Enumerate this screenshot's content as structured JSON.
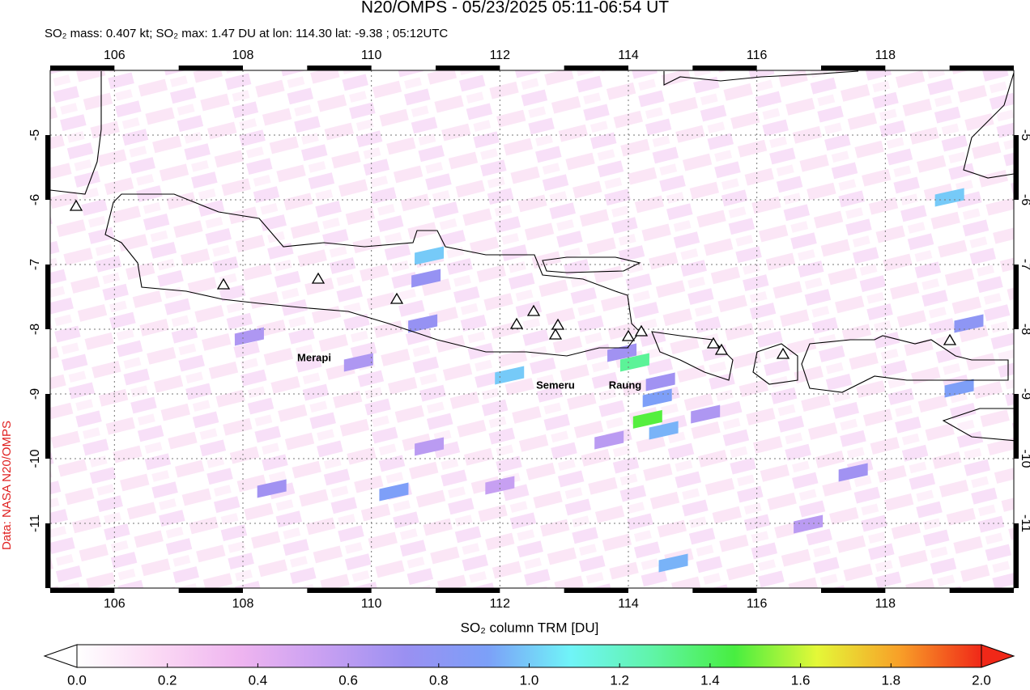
{
  "chart_data": {
    "type": "map",
    "title": "N20/OMPS - 05/23/2025 05:11-06:54 UT",
    "subtitle": "SO₂ mass: 0.407 kt; SO₂ max: 1.47 DU at lon: 114.30 lat: -9.38 ; 05:12UTC",
    "credit": "Data: NASA N20/OMPS",
    "xlim": [
      105,
      120
    ],
    "ylim": [
      -12,
      -4
    ],
    "xticks": [
      106,
      108,
      110,
      112,
      114,
      116,
      118
    ],
    "yticks": [
      -5,
      -6,
      -7,
      -8,
      -9,
      -10,
      -11
    ],
    "grid": true,
    "volcano_labels": [
      "Merapi",
      "Semeru",
      "Raung"
    ],
    "pixels": {
      "lon": [
        114.1,
        114.3,
        110.9,
        112.15,
        110.85,
        110.8,
        114.45,
        114.55,
        113.9,
        114.5,
        108.1,
        109.8,
        110.35,
        108.45,
        114.7,
        119.0,
        119.15,
        110.9,
        112.0,
        117.5,
        116.8,
        113.7,
        115.2,
        119.3
      ],
      "lat": [
        -8.5,
        -9.38,
        -6.85,
        -8.7,
        -7.2,
        -7.9,
        -9.05,
        -9.55,
        -8.35,
        -8.8,
        -8.1,
        -8.5,
        -10.5,
        -10.45,
        -11.6,
        -5.95,
        -8.9,
        -9.8,
        -10.4,
        -10.2,
        -11.0,
        -9.7,
        -9.3,
        -7.9
      ],
      "values": [
        1.3,
        1.47,
        1.0,
        1.0,
        0.75,
        0.75,
        0.9,
        0.95,
        0.7,
        0.7,
        0.65,
        0.65,
        0.9,
        0.7,
        0.95,
        1.0,
        0.9,
        0.6,
        0.55,
        0.7,
        0.6,
        0.6,
        0.65,
        0.8
      ]
    },
    "colorbar": {
      "label": "SO₂ column TRM [DU]",
      "clim": [
        0,
        2
      ],
      "ticks": [
        {
          "value": 0,
          "label": "0.0"
        },
        {
          "value": 0.2,
          "label": "0.2"
        },
        {
          "value": 0.4,
          "label": "0.4"
        },
        {
          "value": 0.6,
          "label": "0.6"
        },
        {
          "value": 0.8,
          "label": "0.8"
        },
        {
          "value": 1.0,
          "label": "1.0"
        },
        {
          "value": 1.2,
          "label": "1.2"
        },
        {
          "value": 1.4,
          "label": "1.4"
        },
        {
          "value": 1.6,
          "label": "1.6"
        },
        {
          "value": 1.8,
          "label": "1.8"
        },
        {
          "value": 2.0,
          "label": "2.0"
        }
      ],
      "colormap": [
        "#ffffff",
        "#fbd8f4",
        "#eeb4f0",
        "#c8a0f2",
        "#9a90f2",
        "#7ca0f8",
        "#70f4f8",
        "#60f4a8",
        "#48ee40",
        "#e4f838",
        "#f8a028",
        "#f02818"
      ]
    }
  }
}
